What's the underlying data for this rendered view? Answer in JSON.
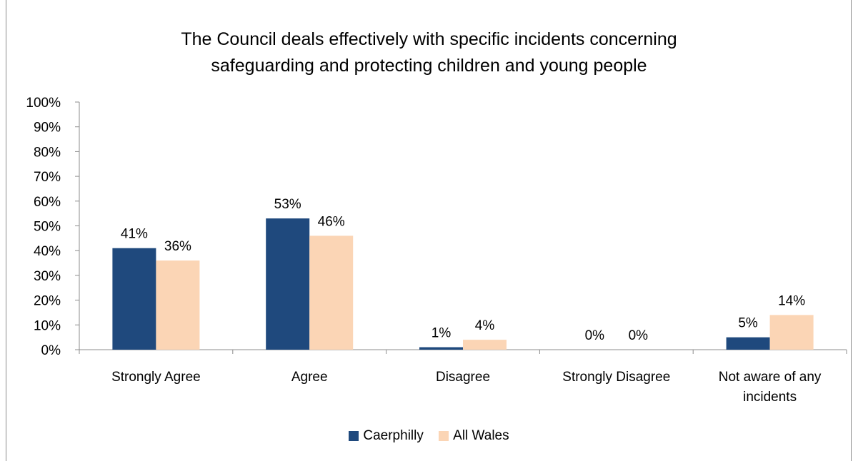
{
  "chart_data": {
    "type": "bar",
    "title_lines": [
      "The Council deals effectively with specific incidents concerning",
      "safeguarding and protecting children and young people"
    ],
    "categories": [
      [
        "Strongly Agree"
      ],
      [
        "Agree"
      ],
      [
        "Disagree"
      ],
      [
        "Strongly Disagree"
      ],
      [
        "Not aware of any",
        "incidents"
      ]
    ],
    "series": [
      {
        "name": "Caerphilly",
        "color": "#1f497d",
        "values": [
          41,
          53,
          1,
          0,
          5
        ]
      },
      {
        "name": "All Wales",
        "color": "#fbd5b5",
        "values": [
          36,
          46,
          4,
          0,
          14
        ]
      }
    ],
    "ylim": [
      0,
      100
    ],
    "y_ticks": [
      "0%",
      "10%",
      "20%",
      "30%",
      "40%",
      "50%",
      "60%",
      "70%",
      "80%",
      "90%",
      "100%"
    ],
    "value_suffix": "%",
    "grid": false,
    "legend_position": "bottom"
  }
}
